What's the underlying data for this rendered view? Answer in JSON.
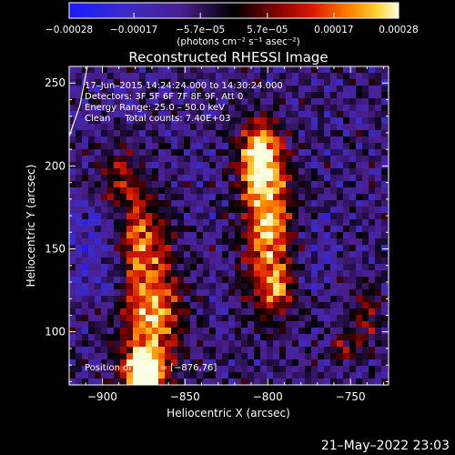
{
  "chart_data": {
    "type": "heatmap",
    "title": "Reconstructed RHESSI Image",
    "xlabel": "Heliocentric X (arcsec)",
    "ylabel": "Heliocentric Y (arcsec)",
    "xlim": [
      -920,
      -727
    ],
    "ylim": [
      68,
      260
    ],
    "x_ticks": [
      -900,
      -850,
      -800,
      -750
    ],
    "x_tick_labels": [
      "−900",
      "−850",
      "−800",
      "−750"
    ],
    "y_ticks": [
      100,
      150,
      200,
      250
    ],
    "y_tick_labels": [
      "100",
      "150",
      "200",
      "250"
    ],
    "colorbar": {
      "range": [
        -0.00028,
        0.00028
      ],
      "ticks": [
        -0.00028,
        -0.00017,
        -5.7e-05,
        5.7e-05,
        0.00017,
        0.00028
      ],
      "tick_labels": [
        "−0.00028",
        "−0.00017",
        "−5.7e−05",
        "5.7e−05",
        "0.00017",
        "0.00028"
      ],
      "unit_label": "(photons cm⁻² s⁻¹ asec⁻²)"
    },
    "info_lines": [
      "17–Jun–2015 14:24:24.000 to 14:30:24.000",
      "Detectors: 3F 5F 6F 7F 8F 9F, Att 0",
      "Energy Range: 25.0 – 50.0 keV",
      "Clean     Total counts: 7.40E+03"
    ],
    "peak_label": "Position of peak = [−876,76]",
    "peak": [
      -876,
      76
    ],
    "sources": [
      {
        "x": -876,
        "y": 76,
        "sx": 7,
        "sy": 9,
        "amp": 1.0
      },
      {
        "x": -870,
        "y": 110,
        "sx": 12,
        "sy": 30,
        "amp": 0.7
      },
      {
        "x": -880,
        "y": 160,
        "sx": 10,
        "sy": 20,
        "amp": 0.45
      },
      {
        "x": -890,
        "y": 195,
        "sx": 8,
        "sy": 12,
        "amp": 0.3
      },
      {
        "x": -805,
        "y": 205,
        "sx": 8,
        "sy": 15,
        "amp": 0.85
      },
      {
        "x": -800,
        "y": 165,
        "sx": 10,
        "sy": 28,
        "amp": 0.75
      },
      {
        "x": -795,
        "y": 125,
        "sx": 8,
        "sy": 12,
        "amp": 0.4
      },
      {
        "x": -740,
        "y": 110,
        "sx": 7,
        "sy": 14,
        "amp": 0.3
      },
      {
        "x": -755,
        "y": 90,
        "sx": 6,
        "sy": 8,
        "amp": 0.25
      }
    ],
    "grid": false
  },
  "footer": {
    "timestamp": "21–May–2022 23:03"
  }
}
